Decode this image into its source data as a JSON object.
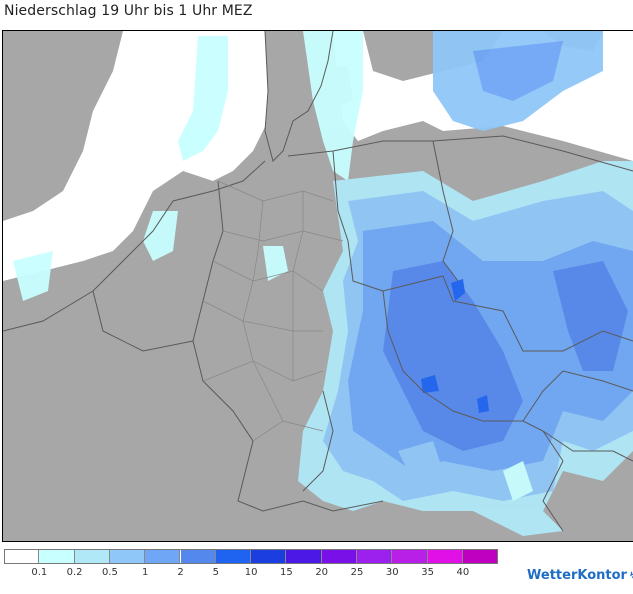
{
  "title": "Niederschlag 19 Uhr bis 1 Uhr MEZ",
  "map": {
    "colors": {
      "land": "#a7a7a7",
      "sea": "#ffffff",
      "border": "#5a5a5a"
    }
  },
  "legend": {
    "colors": [
      "#ffffff",
      "#c8ffff",
      "#b0e8f8",
      "#8fc7f8",
      "#6fa6f6",
      "#5588ec",
      "#1e64f0",
      "#1a3ee0",
      "#4b18e6",
      "#7a10e8",
      "#9c20ee",
      "#b820e8",
      "#e010e6",
      "#c000c0"
    ],
    "labels": [
      "0.1",
      "0.2",
      "0.5",
      "1",
      "2",
      "5",
      "10",
      "15",
      "20",
      "25",
      "30",
      "35",
      "40"
    ]
  },
  "brand": {
    "name": "WetterKontor",
    "mark": "↯"
  }
}
